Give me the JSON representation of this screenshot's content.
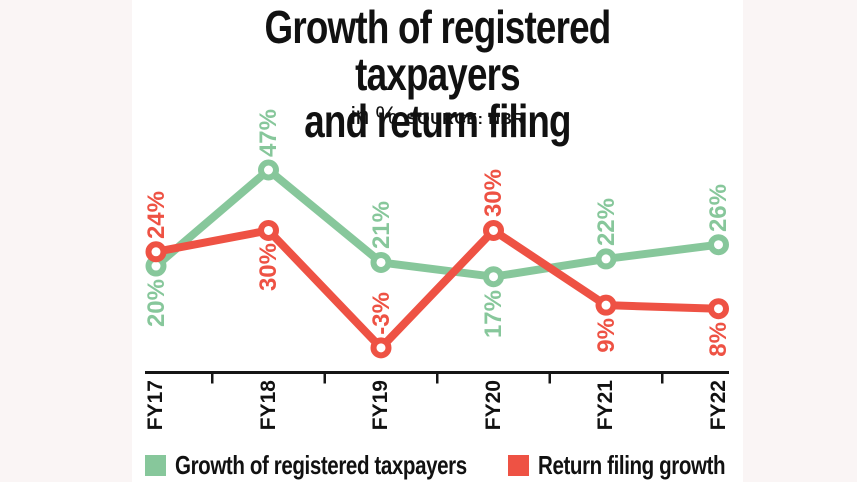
{
  "page": {
    "title_line1": "Growth of registered taxpayers",
    "title_line2": "and return filing",
    "subtitle_unit": "in %",
    "source_label": "SOURCE: NBR"
  },
  "colors": {
    "green": "#87c79b",
    "red": "#ee5244",
    "axis": "#161616",
    "background": "#faf5f5",
    "panel": "#ffffff"
  },
  "chart_data": {
    "type": "line",
    "title": "Growth of registered taxpayers and return filing",
    "unit_note": "in %",
    "source": "NBR",
    "categories": [
      "FY17",
      "FY18",
      "FY19",
      "FY20",
      "FY21",
      "FY22"
    ],
    "series": [
      {
        "name": "Growth of registered taxpayers",
        "color_key": "green",
        "values": [
          20,
          47,
          21,
          17,
          22,
          26
        ],
        "labels": [
          "20%",
          "47%",
          "21%",
          "17%",
          "22%",
          "26%"
        ],
        "label_side": [
          "below",
          "above",
          "above",
          "below",
          "above",
          "above"
        ]
      },
      {
        "name": "Return filing growth",
        "color_key": "red",
        "values": [
          24,
          30,
          -3,
          30,
          9,
          8
        ],
        "labels": [
          "24%",
          "30%",
          "-3%",
          "30%",
          "9%",
          "8%"
        ],
        "label_side": [
          "above",
          "below",
          "above",
          "above",
          "below",
          "below"
        ]
      }
    ],
    "xlabel": "",
    "ylabel": "%",
    "ylim": [
      -10,
      50
    ],
    "grid": false,
    "legend_position": "bottom",
    "marker": "open-circle"
  },
  "legend": {
    "items": [
      {
        "label": "Growth of registered taxpayers",
        "color_key": "green"
      },
      {
        "label": "Return filing growth",
        "color_key": "red"
      }
    ]
  }
}
